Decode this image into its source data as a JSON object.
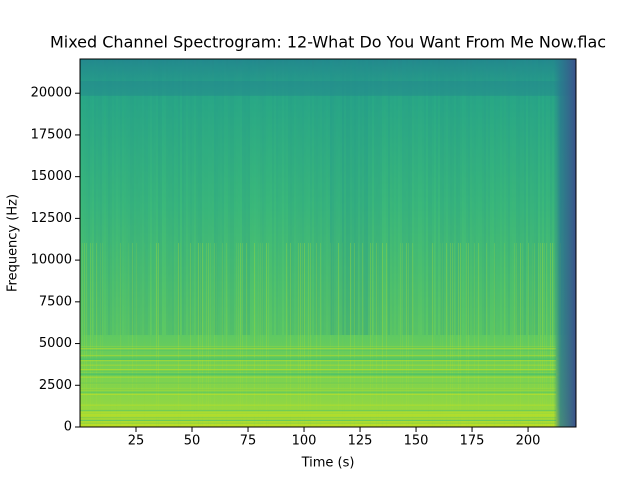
{
  "chart_data": {
    "type": "spectrogram",
    "title": "Mixed Channel Spectrogram: 12-What Do You Want From Me Now.flac",
    "x_label": "Time (s)",
    "y_label": "Frequency (Hz)",
    "xlim": [
      0,
      221.4
    ],
    "xticks": [
      25,
      50,
      75,
      100,
      125,
      150,
      175,
      200
    ],
    "ylim": [
      0,
      22050
    ],
    "yticks": [
      0,
      2500,
      5000,
      7500,
      10000,
      12500,
      15000,
      17500,
      20000
    ]
  }
}
